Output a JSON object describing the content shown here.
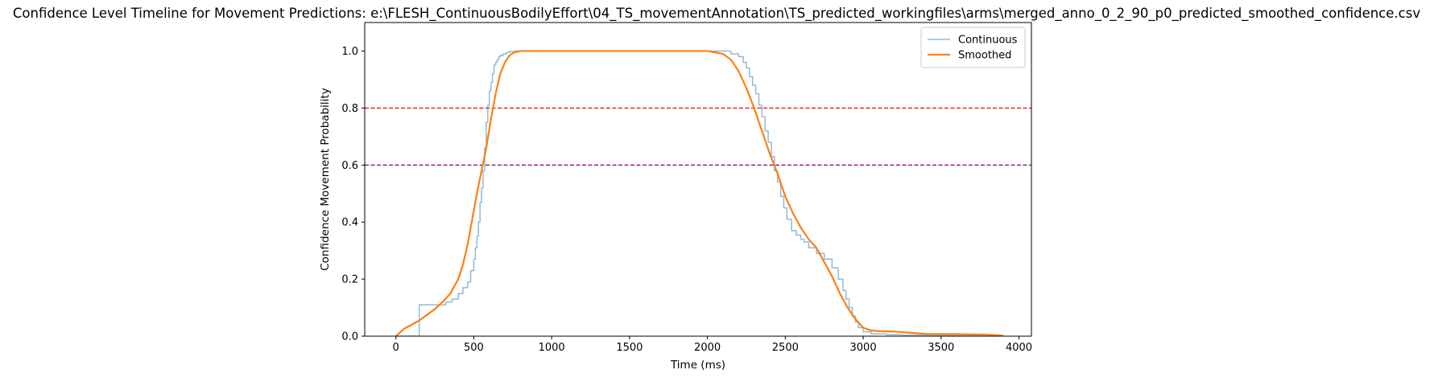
{
  "chart_data": {
    "type": "line",
    "title": "Confidence Level Timeline for Movement Predictions: e:\\FLESH_ContinuousBodilyEffort\\04_TS_movementAnnotation\\TS_predicted_workingfiles\\arms\\merged_anno_0_2_90_p0_predicted_smoothed_confidence.csv",
    "xlabel": "Time (ms)",
    "ylabel": "Confidence Movement Probability",
    "xlim": [
      -200,
      4080
    ],
    "ylim": [
      0.0,
      1.1
    ],
    "xticks": [
      0,
      500,
      1000,
      1500,
      2000,
      2500,
      3000,
      3500,
      4000
    ],
    "yticks": [
      0.0,
      0.2,
      0.4,
      0.6,
      0.8,
      1.0
    ],
    "xtick_labels": [
      "0",
      "500",
      "1000",
      "1500",
      "2000",
      "2500",
      "3000",
      "3500",
      "4000"
    ],
    "ytick_labels": [
      "0.0",
      "0.2",
      "0.4",
      "0.6",
      "0.8",
      "1.0"
    ],
    "grid": false,
    "legend_position": "upper right",
    "thresholds": [
      {
        "y": 0.8,
        "color": "#ff0000",
        "style": "dashed"
      },
      {
        "y": 0.6,
        "color": "#800080",
        "style": "dashed"
      }
    ],
    "series": [
      {
        "name": "Continuous",
        "style": "step",
        "color": "#1f77b4",
        "alpha": 0.5,
        "x": [
          0,
          150,
          160,
          320,
          360,
          400,
          430,
          460,
          480,
          500,
          510,
          520,
          530,
          540,
          550,
          560,
          570,
          580,
          590,
          600,
          610,
          620,
          630,
          640,
          650,
          660,
          670,
          690,
          710,
          730,
          760,
          800,
          2150,
          2200,
          2230,
          2250,
          2270,
          2290,
          2310,
          2330,
          2350,
          2370,
          2390,
          2410,
          2430,
          2450,
          2470,
          2490,
          2510,
          2540,
          2570,
          2600,
          2620,
          2650,
          2700,
          2750,
          2800,
          2840,
          2870,
          2890,
          2910,
          2930,
          2950,
          2970,
          3000,
          3050,
          3150,
          3250,
          3760
        ],
        "y": [
          0.0,
          0.11,
          0.11,
          0.12,
          0.13,
          0.15,
          0.17,
          0.19,
          0.23,
          0.27,
          0.31,
          0.35,
          0.4,
          0.47,
          0.52,
          0.58,
          0.66,
          0.75,
          0.81,
          0.86,
          0.89,
          0.92,
          0.95,
          0.96,
          0.97,
          0.98,
          0.985,
          0.99,
          0.995,
          0.998,
          1.0,
          1.0,
          0.99,
          0.98,
          0.96,
          0.94,
          0.91,
          0.88,
          0.85,
          0.81,
          0.77,
          0.72,
          0.68,
          0.63,
          0.58,
          0.54,
          0.49,
          0.45,
          0.41,
          0.37,
          0.355,
          0.34,
          0.33,
          0.31,
          0.29,
          0.27,
          0.24,
          0.2,
          0.16,
          0.13,
          0.1,
          0.07,
          0.05,
          0.03,
          0.015,
          0.008,
          0.005,
          0.004,
          0.01
        ]
      },
      {
        "name": "Smoothed",
        "style": "line",
        "color": "#ff7f0e",
        "alpha": 1.0,
        "x": [
          0,
          50,
          100,
          150,
          200,
          250,
          300,
          350,
          400,
          430,
          460,
          490,
          520,
          550,
          580,
          610,
          640,
          670,
          700,
          730,
          760,
          800,
          850,
          900,
          1000,
          1200,
          1400,
          1500,
          1600,
          1800,
          2000,
          2100,
          2150,
          2200,
          2250,
          2300,
          2350,
          2400,
          2450,
          2500,
          2550,
          2600,
          2650,
          2700,
          2750,
          2800,
          2850,
          2900,
          2950,
          3000,
          3050,
          3100,
          3200,
          3300,
          3400,
          3500,
          3600,
          3700,
          3800,
          3900
        ],
        "y": [
          0.0,
          0.025,
          0.04,
          0.055,
          0.075,
          0.095,
          0.12,
          0.15,
          0.2,
          0.25,
          0.32,
          0.41,
          0.5,
          0.58,
          0.66,
          0.76,
          0.85,
          0.92,
          0.96,
          0.985,
          0.995,
          1.0,
          1.0,
          1.0,
          1.0,
          1.0,
          1.0,
          1.0,
          1.0,
          1.0,
          1.0,
          0.99,
          0.97,
          0.93,
          0.87,
          0.8,
          0.72,
          0.64,
          0.57,
          0.49,
          0.43,
          0.38,
          0.34,
          0.31,
          0.26,
          0.21,
          0.15,
          0.1,
          0.06,
          0.03,
          0.02,
          0.018,
          0.016,
          0.012,
          0.008,
          0.007,
          0.007,
          0.006,
          0.005,
          0.002
        ]
      }
    ]
  }
}
